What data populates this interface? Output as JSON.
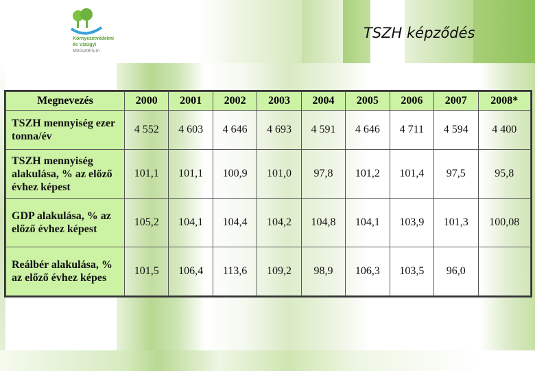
{
  "logo": {
    "line1": "Környezetvédelmi",
    "line2": "és Vízügyi",
    "line3": "Minisztérium"
  },
  "page_title": "TSZH képződés",
  "table": {
    "headers": [
      "Megnevezés",
      "2000",
      "2001",
      "2002",
      "2003",
      "2004",
      "2005",
      "2006",
      "2007",
      "2008*"
    ],
    "rows": [
      {
        "label": "TSZH mennyiség ezer tonna/év",
        "values": [
          "4 552",
          "4 603",
          "4 646",
          "4 693",
          "4 591",
          "4 646",
          "4 711",
          "4 594",
          "4 400"
        ]
      },
      {
        "label": "TSZH mennyiség alakulása, % az előző évhez képest",
        "values": [
          "101,1",
          "101,1",
          "100,9",
          "101,0",
          "97,8",
          "101,2",
          "101,4",
          "97,5",
          "95,8"
        ]
      },
      {
        "label": "GDP alakulása, % az előző évhez képest",
        "values": [
          "105,2",
          "104,1",
          "104,4",
          "104,2",
          "104,8",
          "104,1",
          "103,9",
          "101,3",
          "100,08"
        ]
      },
      {
        "label": "Reálbér alakulása, % az előző évhez képes",
        "values": [
          "101,5",
          "106,4",
          "113,6",
          "109,2",
          "98,9",
          "106,3",
          "103,5",
          "96,0",
          ""
        ]
      }
    ]
  },
  "colors": {
    "header_cell": "#ccf2a4",
    "brand_green": "#5a9e2f"
  }
}
